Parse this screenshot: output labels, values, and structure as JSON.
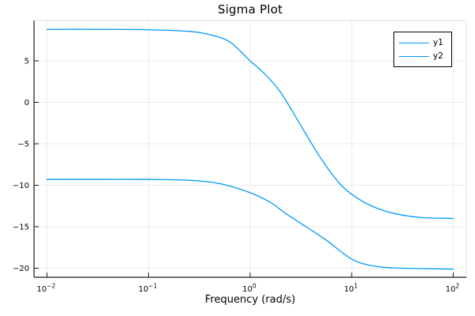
{
  "chart": {
    "title": "Sigma Plot",
    "xlabel": "Frequency (rad/s)"
  },
  "colors": {
    "series_blue": "#009af9",
    "axis_dark": "#1a1a1a",
    "axis_light": "#e0e0e0",
    "grid": "#ebebeb",
    "text": "#000000",
    "background": "#ffffff"
  },
  "chart_data": {
    "type": "line",
    "title": "Sigma Plot",
    "xlabel": "Frequency (rad/s)",
    "ylabel": "",
    "x_scale": "log10",
    "xlim": [
      0.01,
      100
    ],
    "ylim": [
      -21.1,
      9.9
    ],
    "grid": true,
    "x_ticks": [
      0.01,
      0.1,
      1,
      10,
      100
    ],
    "x_tick_labels": [
      {
        "base": "10",
        "exp": "−2"
      },
      {
        "base": "10",
        "exp": "−1"
      },
      {
        "base": "10",
        "exp": "0"
      },
      {
        "base": "10",
        "exp": "1"
      },
      {
        "base": "10",
        "exp": "2"
      }
    ],
    "y_ticks": [
      5,
      0,
      -5,
      -10,
      -15,
      -20
    ],
    "y_tick_labels": [
      "5",
      "0",
      "−5",
      "−10",
      "−15",
      "−20"
    ],
    "legend": {
      "position": "top-right",
      "entries": [
        "y1",
        "y2"
      ]
    },
    "series": [
      {
        "name": "y1",
        "color": "#009af9",
        "points_unit": "[frequency rad/s, singular value dB]",
        "points": [
          [
            0.01,
            8.8
          ],
          [
            0.0316,
            8.8
          ],
          [
            0.1,
            8.75
          ],
          [
            0.25,
            8.55
          ],
          [
            0.4,
            8.15
          ],
          [
            0.63,
            7.3
          ],
          [
            1.0,
            5.0
          ],
          [
            1.4,
            3.4
          ],
          [
            2.0,
            1.2
          ],
          [
            3.16,
            -2.8
          ],
          [
            5.0,
            -6.8
          ],
          [
            7.9,
            -10.0
          ],
          [
            12.6,
            -11.9
          ],
          [
            20.0,
            -13.0
          ],
          [
            31.6,
            -13.6
          ],
          [
            50.0,
            -13.9
          ],
          [
            100.0,
            -14.0
          ]
        ]
      },
      {
        "name": "y2",
        "color": "#009af9",
        "points_unit": "[frequency rad/s, singular value dB]",
        "points": [
          [
            0.01,
            -9.3
          ],
          [
            0.0316,
            -9.3
          ],
          [
            0.1,
            -9.3
          ],
          [
            0.25,
            -9.4
          ],
          [
            0.5,
            -9.8
          ],
          [
            1.0,
            -10.9
          ],
          [
            1.6,
            -12.1
          ],
          [
            2.24,
            -13.4
          ],
          [
            3.55,
            -15.0
          ],
          [
            5.6,
            -16.6
          ],
          [
            10.0,
            -18.9
          ],
          [
            15.8,
            -19.7
          ],
          [
            25.1,
            -19.95
          ],
          [
            50.0,
            -20.05
          ],
          [
            100.0,
            -20.1
          ]
        ]
      }
    ]
  }
}
